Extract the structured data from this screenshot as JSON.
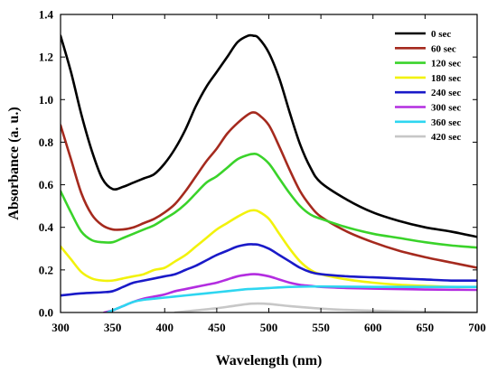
{
  "chart_data": {
    "type": "line",
    "xlabel": "Wavelength (nm)",
    "ylabel": "Absorbance (a. u.)",
    "xlim": [
      300,
      700
    ],
    "ylim": [
      0,
      1.4
    ],
    "xticks": [
      "300",
      "350",
      "400",
      "450",
      "500",
      "550",
      "600",
      "650",
      "700"
    ],
    "yticks": [
      "0.0",
      "0.2",
      "0.4",
      "0.6",
      "0.8",
      "1.0",
      "1.2",
      "1.4"
    ],
    "grid": false,
    "legend_position": "top-right",
    "series": [
      {
        "name": "0 sec",
        "color": "#000000",
        "x": [
          300,
          310,
          320,
          330,
          340,
          350,
          360,
          370,
          380,
          390,
          400,
          410,
          420,
          430,
          440,
          450,
          460,
          470,
          480,
          485,
          490,
          500,
          510,
          520,
          530,
          540,
          550,
          575,
          600,
          625,
          650,
          675,
          700
        ],
        "y": [
          1.3,
          1.13,
          0.93,
          0.76,
          0.63,
          0.58,
          0.59,
          0.61,
          0.63,
          0.65,
          0.7,
          0.77,
          0.86,
          0.97,
          1.06,
          1.13,
          1.2,
          1.27,
          1.3,
          1.3,
          1.29,
          1.22,
          1.1,
          0.94,
          0.79,
          0.68,
          0.61,
          0.53,
          0.47,
          0.43,
          0.4,
          0.38,
          0.355
        ]
      },
      {
        "name": "60 sec",
        "color": "#a52a1e",
        "x": [
          300,
          310,
          320,
          330,
          340,
          350,
          360,
          370,
          380,
          390,
          400,
          410,
          420,
          430,
          440,
          450,
          460,
          470,
          480,
          485,
          490,
          500,
          510,
          520,
          530,
          540,
          550,
          575,
          600,
          625,
          650,
          675,
          700
        ],
        "y": [
          0.88,
          0.72,
          0.56,
          0.46,
          0.41,
          0.39,
          0.39,
          0.4,
          0.42,
          0.44,
          0.47,
          0.51,
          0.57,
          0.64,
          0.71,
          0.77,
          0.84,
          0.89,
          0.93,
          0.94,
          0.93,
          0.88,
          0.78,
          0.67,
          0.57,
          0.5,
          0.45,
          0.38,
          0.33,
          0.29,
          0.26,
          0.235,
          0.21
        ]
      },
      {
        "name": "120 sec",
        "color": "#3ad32a",
        "x": [
          300,
          310,
          320,
          330,
          340,
          350,
          360,
          370,
          380,
          390,
          400,
          410,
          420,
          430,
          440,
          450,
          460,
          470,
          480,
          485,
          490,
          500,
          510,
          520,
          530,
          540,
          550,
          575,
          600,
          625,
          650,
          675,
          700
        ],
        "y": [
          0.57,
          0.47,
          0.38,
          0.34,
          0.33,
          0.33,
          0.35,
          0.37,
          0.39,
          0.41,
          0.44,
          0.47,
          0.51,
          0.56,
          0.61,
          0.64,
          0.68,
          0.72,
          0.74,
          0.745,
          0.74,
          0.7,
          0.63,
          0.56,
          0.5,
          0.46,
          0.44,
          0.4,
          0.37,
          0.35,
          0.33,
          0.315,
          0.305
        ]
      },
      {
        "name": "180 sec",
        "color": "#f2f20c",
        "x": [
          300,
          310,
          320,
          330,
          340,
          350,
          360,
          370,
          380,
          390,
          400,
          410,
          420,
          430,
          440,
          450,
          460,
          470,
          480,
          485,
          490,
          500,
          510,
          520,
          530,
          540,
          550,
          575,
          600,
          625,
          650,
          675,
          700
        ],
        "y": [
          0.31,
          0.25,
          0.19,
          0.16,
          0.15,
          0.15,
          0.16,
          0.17,
          0.18,
          0.2,
          0.21,
          0.24,
          0.27,
          0.31,
          0.35,
          0.39,
          0.42,
          0.45,
          0.475,
          0.48,
          0.475,
          0.44,
          0.37,
          0.3,
          0.24,
          0.2,
          0.18,
          0.155,
          0.14,
          0.13,
          0.125,
          0.12,
          0.12
        ]
      },
      {
        "name": "240 sec",
        "color": "#1a1ac8",
        "x": [
          300,
          320,
          340,
          350,
          360,
          370,
          380,
          390,
          400,
          410,
          420,
          430,
          440,
          450,
          460,
          470,
          480,
          485,
          490,
          500,
          510,
          520,
          530,
          540,
          550,
          575,
          600,
          625,
          650,
          675,
          700
        ],
        "y": [
          0.08,
          0.09,
          0.095,
          0.1,
          0.12,
          0.14,
          0.15,
          0.16,
          0.17,
          0.18,
          0.2,
          0.22,
          0.245,
          0.27,
          0.29,
          0.31,
          0.32,
          0.32,
          0.318,
          0.3,
          0.27,
          0.24,
          0.21,
          0.19,
          0.18,
          0.17,
          0.165,
          0.16,
          0.155,
          0.15,
          0.15
        ]
      },
      {
        "name": "300 sec",
        "color": "#b32de0",
        "x": [
          342,
          350,
          360,
          370,
          380,
          390,
          400,
          410,
          420,
          430,
          440,
          450,
          460,
          470,
          480,
          485,
          490,
          500,
          510,
          520,
          530,
          540,
          550,
          575,
          600,
          625,
          650,
          675,
          700
        ],
        "y": [
          0.0,
          0.01,
          0.03,
          0.05,
          0.065,
          0.075,
          0.085,
          0.1,
          0.11,
          0.12,
          0.13,
          0.14,
          0.155,
          0.17,
          0.178,
          0.18,
          0.179,
          0.17,
          0.155,
          0.14,
          0.13,
          0.125,
          0.12,
          0.115,
          0.112,
          0.11,
          0.108,
          0.107,
          0.106
        ]
      },
      {
        "name": "360 sec",
        "color": "#2ed6f0",
        "x": [
          345,
          360,
          370,
          380,
          390,
          400,
          410,
          420,
          430,
          440,
          450,
          460,
          470,
          480,
          490,
          500,
          520,
          540,
          560,
          600,
          650,
          700
        ],
        "y": [
          0.0,
          0.03,
          0.05,
          0.06,
          0.065,
          0.07,
          0.075,
          0.08,
          0.085,
          0.09,
          0.095,
          0.1,
          0.105,
          0.11,
          0.112,
          0.115,
          0.12,
          0.122,
          0.122,
          0.12,
          0.12,
          0.12
        ]
      },
      {
        "name": "420 sec",
        "color": "#c7c7c7",
        "x": [
          410,
          430,
          450,
          465,
          480,
          490,
          500,
          520,
          540,
          560,
          600,
          650,
          700
        ],
        "y": [
          0.0,
          0.01,
          0.02,
          0.03,
          0.04,
          0.042,
          0.04,
          0.03,
          0.022,
          0.015,
          0.008,
          0.003,
          0.0
        ]
      }
    ]
  }
}
